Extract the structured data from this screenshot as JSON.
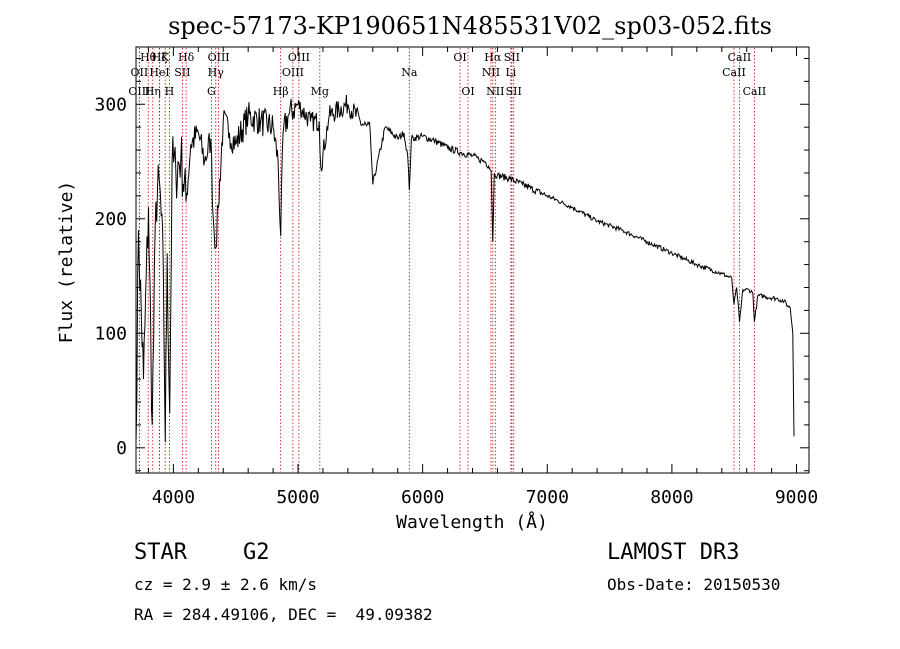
{
  "chart_data": {
    "type": "line",
    "title": "spec-57173-KP190651N485531V02_sp03-052.fits",
    "xlabel": "Wavelength (Å)",
    "ylabel": "Flux (relative)",
    "xlim": [
      3700,
      9100
    ],
    "ylim": [
      -22,
      350
    ],
    "xticks": [
      4000,
      5000,
      6000,
      7000,
      8000,
      9000
    ],
    "yticks": [
      0,
      100,
      200,
      300
    ],
    "series": [
      {
        "name": "flux",
        "x": [
          3700,
          3720,
          3760,
          3800,
          3830,
          3860,
          3890,
          3920,
          3935,
          3950,
          3970,
          3990,
          4020,
          4060,
          4101,
          4140,
          4200,
          4250,
          4300,
          4320,
          4340,
          4360,
          4400,
          4450,
          4500,
          4600,
          4700,
          4800,
          4840,
          4861,
          4880,
          4920,
          5000,
          5100,
          5170,
          5183,
          5250,
          5400,
          5500,
          5580,
          5600,
          5700,
          5800,
          5850,
          5880,
          5893,
          5910,
          6000,
          6100,
          6200,
          6300,
          6400,
          6450,
          6500,
          6530,
          6550,
          6563,
          6575,
          6600,
          6700,
          6800,
          7000,
          7200,
          7400,
          7600,
          7800,
          8000,
          8200,
          8400,
          8480,
          8498,
          8520,
          8542,
          8570,
          8620,
          8650,
          8662,
          8690,
          8750,
          8850,
          8900,
          8930,
          8950,
          8970,
          8980
        ],
        "values": [
          5,
          190,
          60,
          210,
          20,
          215,
          230,
          150,
          5,
          170,
          30,
          250,
          240,
          255,
          215,
          265,
          275,
          250,
          270,
          200,
          175,
          210,
          285,
          275,
          265,
          290,
          285,
          280,
          250,
          185,
          275,
          290,
          300,
          285,
          285,
          245,
          290,
          300,
          285,
          275,
          230,
          280,
          270,
          275,
          255,
          225,
          270,
          272,
          268,
          262,
          258,
          255,
          252,
          250,
          246,
          242,
          180,
          240,
          238,
          235,
          230,
          220,
          210,
          198,
          190,
          180,
          170,
          160,
          152,
          148,
          125,
          140,
          110,
          138,
          138,
          135,
          110,
          133,
          132,
          130,
          128,
          124,
          122,
          100,
          10
        ]
      }
    ],
    "lines": [
      {
        "label": "Hθ",
        "wave": 3798,
        "row": 1
      },
      {
        "label": "OII",
        "wave": 3727,
        "row": 2
      },
      {
        "label": "OIII",
        "wave": 3727,
        "row": 3
      },
      {
        "label": "Hζ",
        "wave": 3889,
        "row": 1
      },
      {
        "label": "HeI",
        "wave": 3889,
        "row": 2
      },
      {
        "label": "Hη",
        "wave": 3835,
        "row": 3
      },
      {
        "label": "K",
        "wave": 3934,
        "row": 1
      },
      {
        "label": "SII",
        "wave": 4072,
        "row": 2
      },
      {
        "label": "H",
        "wave": 3968,
        "row": 3
      },
      {
        "label": "Hδ",
        "wave": 4102,
        "row": 1
      },
      {
        "label": "OIII",
        "wave": 4363,
        "row": 1
      },
      {
        "label": "Hγ",
        "wave": 4340,
        "row": 2
      },
      {
        "label": "G",
        "wave": 4305,
        "row": 3
      },
      {
        "label": "Hβ",
        "wave": 4861,
        "row": 3
      },
      {
        "label": "OIII",
        "wave": 5007,
        "row": 1
      },
      {
        "label": "OIII",
        "wave": 4959,
        "row": 2
      },
      {
        "label": "Mg",
        "wave": 5175,
        "row": 3
      },
      {
        "label": "Na",
        "wave": 5893,
        "row": 2
      },
      {
        "label": "OI",
        "wave": 6300,
        "row": 1
      },
      {
        "label": "OI",
        "wave": 6364,
        "row": 3
      },
      {
        "label": "Hα",
        "wave": 6563,
        "row": 1
      },
      {
        "label": "SII",
        "wave": 6716,
        "row": 1
      },
      {
        "label": "NII",
        "wave": 6548,
        "row": 2
      },
      {
        "label": "Li",
        "wave": 6708,
        "row": 2
      },
      {
        "label": "NII",
        "wave": 6583,
        "row": 3
      },
      {
        "label": "SII",
        "wave": 6731,
        "row": 3
      },
      {
        "label": "CaII",
        "wave": 8542,
        "row": 1
      },
      {
        "label": "CaII",
        "wave": 8498,
        "row": 2
      },
      {
        "label": "CaII",
        "wave": 8662,
        "row": 3
      }
    ]
  },
  "info": {
    "class": "STAR",
    "subclass": "G2",
    "survey": "LAMOST DR3",
    "cz": "cz = 2.9 ± 2.6 km/s",
    "obs_date": "Obs-Date: 20150530",
    "coords": "RA = 284.49106, DEC =  49.09382"
  },
  "colors": {
    "line": "#000000",
    "marker": "#cc0000",
    "axes": "#000000"
  }
}
